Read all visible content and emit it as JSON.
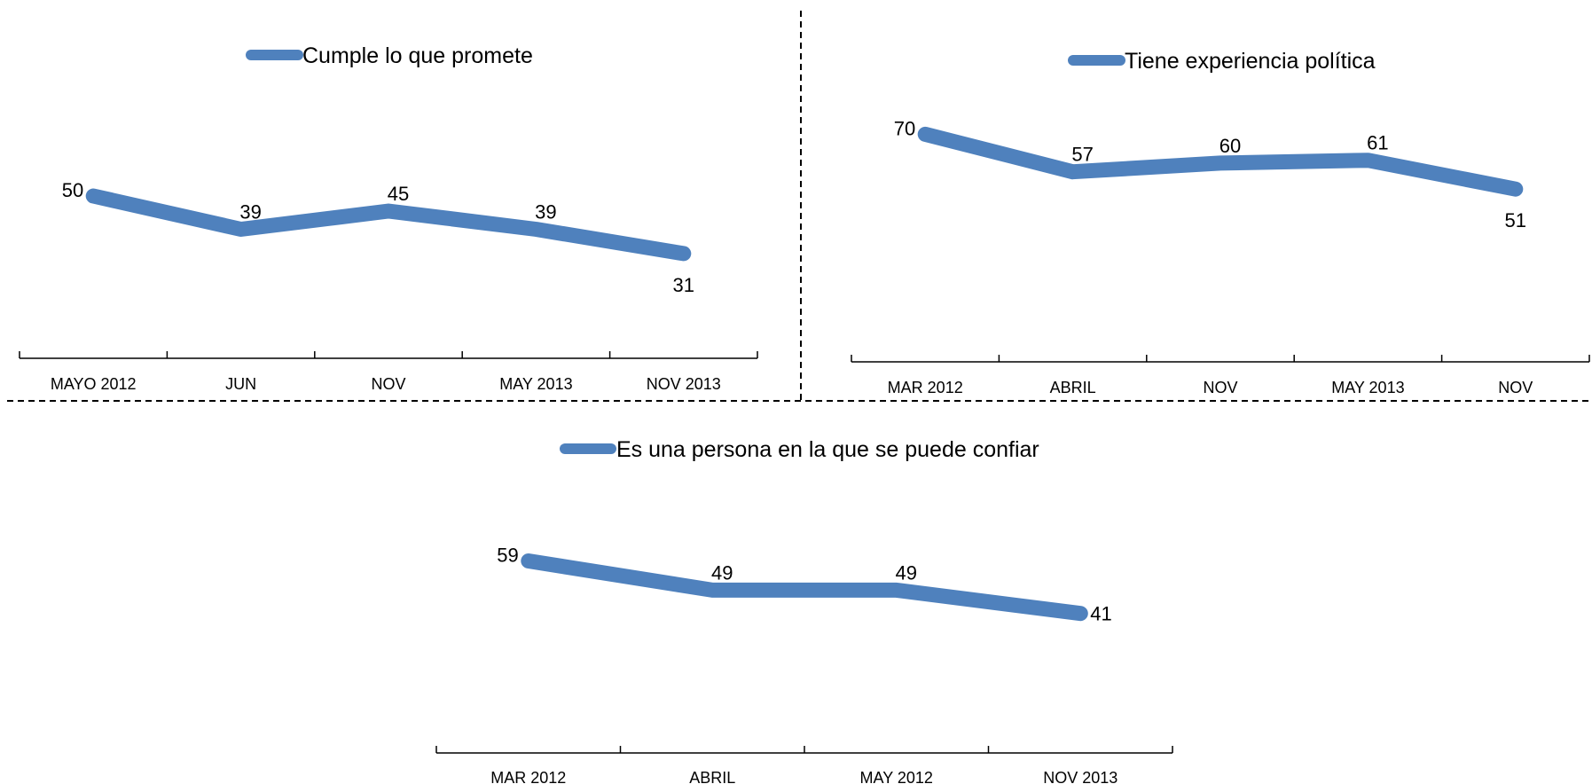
{
  "colors": {
    "series": "#4F81BD",
    "axis": "#000000",
    "text": "#000000"
  },
  "chart_data": [
    {
      "type": "line",
      "legend_position": "top",
      "categories": [
        "MAYO 2012",
        "JUN",
        "NOV",
        "MAY 2013",
        "NOV 2013"
      ],
      "series": [
        {
          "name": "Cumple lo que promete",
          "values": [
            50,
            39,
            45,
            39,
            31
          ]
        }
      ],
      "label_positions": [
        "left",
        "above",
        "above",
        "above",
        "below"
      ],
      "grid": false
    },
    {
      "type": "line",
      "legend_position": "top",
      "categories": [
        "MAR 2012",
        "ABRIL",
        "NOV",
        "MAY  2013",
        "NOV"
      ],
      "series": [
        {
          "name": "Tiene experiencia política",
          "values": [
            70,
            57,
            60,
            61,
            51
          ]
        }
      ],
      "label_positions": [
        "left",
        "above",
        "above",
        "above",
        "below"
      ],
      "grid": false
    },
    {
      "type": "line",
      "legend_position": "top",
      "categories": [
        "MAR 2012",
        "ABRIL",
        "MAY  2012",
        "NOV 2013"
      ],
      "series": [
        {
          "name": "Es una persona en la que se puede confiar",
          "values": [
            59,
            49,
            49,
            41
          ]
        }
      ],
      "label_positions": [
        "left",
        "above",
        "above",
        "right"
      ],
      "grid": false
    }
  ]
}
